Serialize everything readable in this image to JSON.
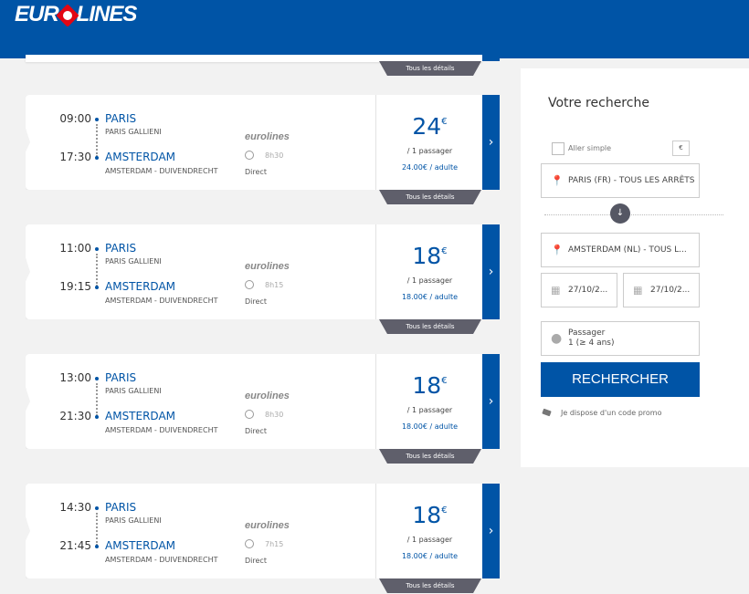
{
  "header": {
    "logo": "eurolines"
  },
  "colors": {
    "brand": "#0054a6",
    "tab": "#5f5f6b",
    "logo_accent": "#e30613"
  },
  "details_label": "Tous les détails",
  "results": [
    {
      "dep_time": "09:00",
      "dep_city": "PARIS",
      "dep_station": "PARIS GALLIENI",
      "arr_time": "17:30",
      "arr_city": "AMSTERDAM",
      "arr_station": "AMSTERDAM - DUIVENDRECHT",
      "operator": "eurolines",
      "duration": "8h30",
      "type": "Direct",
      "price": "24",
      "currency": "€",
      "per": "/ 1 passager",
      "per_adult": "24.00€ / adulte"
    },
    {
      "dep_time": "11:00",
      "dep_city": "PARIS",
      "dep_station": "PARIS GALLIENI",
      "arr_time": "19:15",
      "arr_city": "AMSTERDAM",
      "arr_station": "AMSTERDAM - DUIVENDRECHT",
      "operator": "eurolines",
      "duration": "8h15",
      "type": "Direct",
      "price": "18",
      "currency": "€",
      "per": "/ 1 passager",
      "per_adult": "18.00€ / adulte"
    },
    {
      "dep_time": "13:00",
      "dep_city": "PARIS",
      "dep_station": "PARIS GALLIENI",
      "arr_time": "21:30",
      "arr_city": "AMSTERDAM",
      "arr_station": "AMSTERDAM - DUIVENDRECHT",
      "operator": "eurolines",
      "duration": "8h30",
      "type": "Direct",
      "price": "18",
      "currency": "€",
      "per": "/ 1 passager",
      "per_adult": "18.00€ / adulte"
    },
    {
      "dep_time": "14:30",
      "dep_city": "PARIS",
      "dep_station": "PARIS GALLIENI",
      "arr_time": "21:45",
      "arr_city": "AMSTERDAM",
      "arr_station": "AMSTERDAM - DUIVENDRECHT",
      "operator": "eurolines",
      "duration": "7h15",
      "type": "Direct",
      "price": "18",
      "currency": "€",
      "per": "/ 1 passager",
      "per_adult": "18.00€ / adulte"
    }
  ],
  "search": {
    "title": "Votre recherche",
    "one_way": "Aller simple",
    "one_way_checked": false,
    "currency": "€",
    "from": "PARIS (FR) - TOUS LES ARRÊTS",
    "to": "AMSTERDAM (NL) - TOUS L...",
    "date_out": "27/10/2...",
    "date_return": "27/10/2...",
    "passenger_label": "Passager",
    "passenger_value": "1 (≥ 4 ans)",
    "submit": "RECHERCHER",
    "promo": "Je dispose d'un code promo"
  }
}
